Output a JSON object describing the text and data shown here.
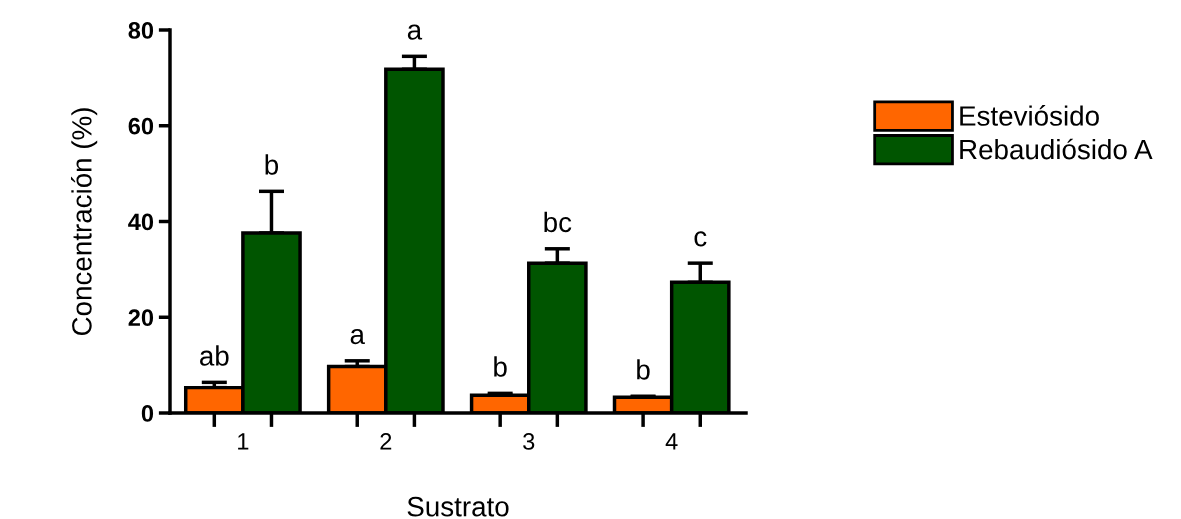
{
  "chart_data": {
    "type": "bar",
    "xlabel": "Sustrato",
    "ylabel": "Concentración (%)",
    "categories": [
      "1",
      "2",
      "3",
      "4"
    ],
    "series": [
      {
        "name": "Esteviósido",
        "color": "#ff6600",
        "values": [
          5.3,
          9.7,
          3.7,
          3.3
        ],
        "errors": [
          1.1,
          1.2,
          0.4,
          0.2
        ]
      },
      {
        "name": "Rebaudiósido A",
        "color": "#005500",
        "values": [
          37.6,
          71.8,
          31.3,
          27.3
        ],
        "errors": [
          8.7,
          2.7,
          3.0,
          4.0
        ]
      }
    ],
    "ylim": [
      0,
      80
    ],
    "yticks": [
      0,
      20,
      40,
      60,
      80
    ],
    "grid": false,
    "legend": "right",
    "annotations": [
      {
        "text": "ab",
        "x": "1",
        "y": 5.3
      },
      {
        "text": "b",
        "x": "1",
        "y": 37.6
      },
      {
        "text": "a",
        "x": "2",
        "y": 9.7
      },
      {
        "text": "a",
        "x": "2",
        "y": 71.8
      },
      {
        "text": "b",
        "x": "3",
        "y": 3.7
      },
      {
        "text": "bc",
        "x": "3",
        "y": 31.3
      },
      {
        "text": "b",
        "x": "4",
        "y": 3.3
      },
      {
        "text": "c",
        "x": "4",
        "y": 27.3
      }
    ]
  }
}
